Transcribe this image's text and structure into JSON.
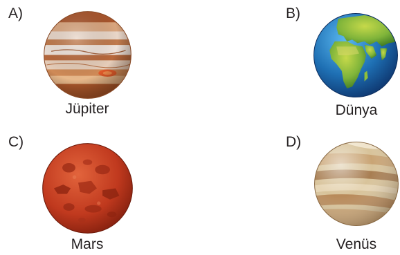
{
  "options": [
    {
      "letter": "A)",
      "name": "Jüpiter",
      "icon": "jupiter-icon"
    },
    {
      "letter": "B)",
      "name": "Dünya",
      "icon": "earth-icon"
    },
    {
      "letter": "C)",
      "name": "Mars",
      "icon": "mars-icon"
    },
    {
      "letter": "D)",
      "name": "Venüs",
      "icon": "venus-icon"
    }
  ],
  "colors": {
    "text": "#231f20",
    "jupiter": "#c9834f",
    "earth_ocean": "#1e6fb3",
    "earth_land": "#7fb43a",
    "mars": "#c0391e",
    "venus": "#d8c39a"
  }
}
